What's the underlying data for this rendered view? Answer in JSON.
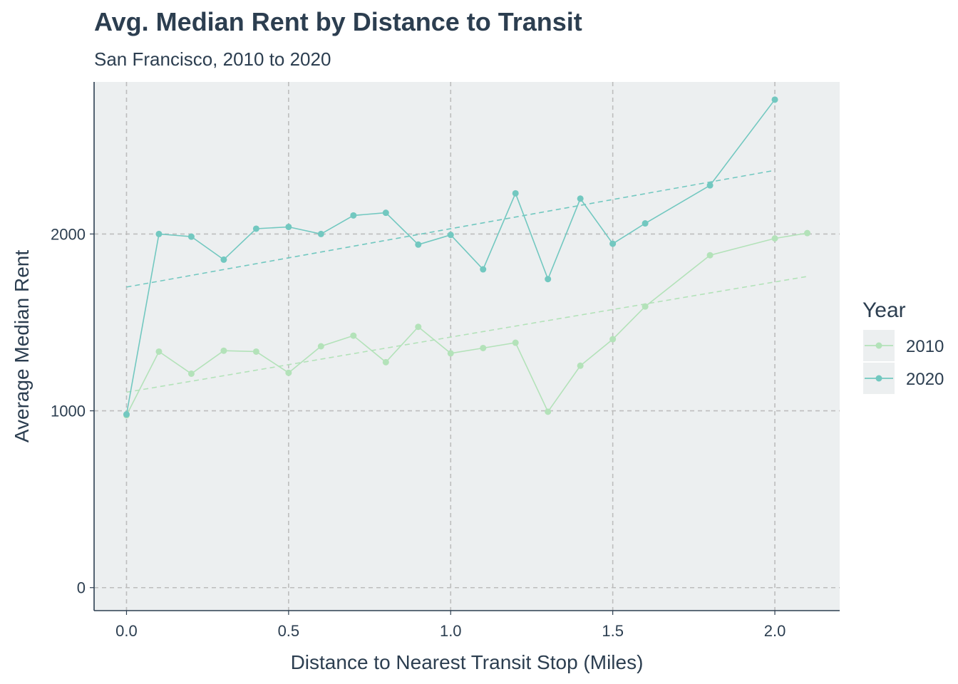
{
  "chart_data": {
    "type": "line",
    "title": "Avg. Median Rent by Distance to Transit",
    "subtitle": "San Francisco, 2010 to 2020",
    "xlabel": "Distance to Nearest Transit Stop (Miles)",
    "ylabel": "Average Median Rent",
    "xlim": [
      -0.1,
      2.2
    ],
    "ylim": [
      -130,
      2860
    ],
    "x_ticks": [
      0.0,
      0.5,
      1.0,
      1.5,
      2.0
    ],
    "x_tick_labels": [
      "0.0",
      "0.5",
      "1.0",
      "1.5",
      "2.0"
    ],
    "y_ticks": [
      0,
      1000,
      2000
    ],
    "y_tick_labels": [
      "0",
      "1000",
      "2000"
    ],
    "grid": true,
    "legend": {
      "title": "Year",
      "position": "right"
    },
    "background_color": "#eceff0",
    "series": [
      {
        "name": "2010",
        "color": "#b3e2b9",
        "x": [
          0.0,
          0.1,
          0.2,
          0.3,
          0.4,
          0.5,
          0.6,
          0.7,
          0.8,
          0.9,
          1.0,
          1.1,
          1.2,
          1.3,
          1.4,
          1.5,
          1.6,
          1.8,
          2.0,
          2.1
        ],
        "values": [
          975,
          1335,
          1210,
          1340,
          1335,
          1215,
          1365,
          1425,
          1275,
          1475,
          1325,
          1355,
          1385,
          995,
          1255,
          1405,
          1590,
          1880,
          1975,
          2005
        ],
        "trend": {
          "x_start": 0.0,
          "y_start": 1105,
          "x_end": 2.1,
          "y_end": 1760
        }
      },
      {
        "name": "2020",
        "color": "#72c8c0",
        "x": [
          0.0,
          0.1,
          0.2,
          0.3,
          0.4,
          0.5,
          0.6,
          0.7,
          0.8,
          0.9,
          1.0,
          1.1,
          1.2,
          1.3,
          1.4,
          1.5,
          1.6,
          1.8,
          2.0
        ],
        "values": [
          980,
          2000,
          1985,
          1855,
          2030,
          2040,
          2000,
          2105,
          2120,
          1940,
          1995,
          1800,
          2230,
          1745,
          2200,
          1945,
          2060,
          2275,
          2760
        ],
        "trend": {
          "x_start": 0.0,
          "y_start": 1700,
          "x_end": 2.0,
          "y_end": 2360
        }
      }
    ]
  }
}
